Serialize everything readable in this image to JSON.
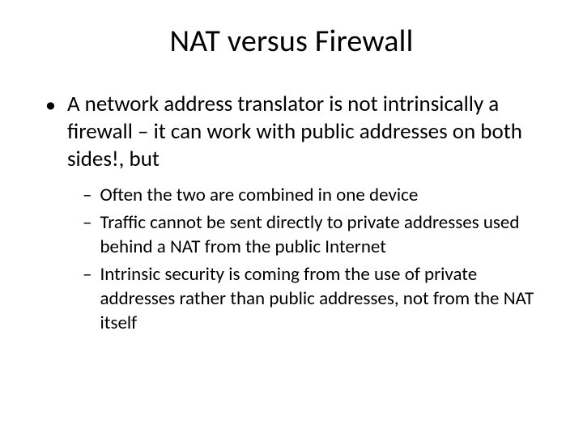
{
  "slide": {
    "title": "NAT versus Firewall",
    "background_color": "#ffffff",
    "text_color": "#000000",
    "title_fontsize": 38,
    "body_fontsize_l1": 27,
    "body_fontsize_l2": 23,
    "font_family": "Calibri",
    "bullets_l1": [
      {
        "marker": "•",
        "text": "A network address translator is not intrinsically a firewall – it can work with public addresses on both sides!, but"
      }
    ],
    "bullets_l2": [
      {
        "marker": "–",
        "text": "Often the two are combined in one device"
      },
      {
        "marker": "–",
        "text": "Traffic cannot be sent directly to private addresses used behind a NAT from the public Internet"
      },
      {
        "marker": "–",
        "text": "Intrinsic security is coming from the use of private addresses rather than public addresses, not from the NAT itself"
      }
    ]
  }
}
